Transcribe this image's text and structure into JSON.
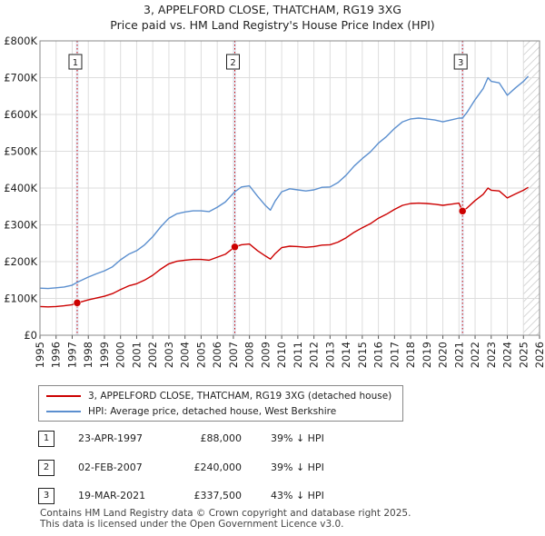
{
  "title_line1": "3, APPELFORD CLOSE, THATCHAM, RG19 3XG",
  "title_line2": "Price paid vs. HM Land Registry's House Price Index (HPI)",
  "chart_data": {
    "type": "line",
    "x_range": [
      1995,
      2026
    ],
    "ylim": [
      0,
      800000
    ],
    "y_ticks": [
      0,
      100000,
      200000,
      300000,
      400000,
      500000,
      600000,
      700000,
      800000
    ],
    "y_tick_labels": [
      "£0",
      "£100K",
      "£200K",
      "£300K",
      "£400K",
      "£500K",
      "£600K",
      "£700K",
      "£800K"
    ],
    "x_tick_labels": [
      "1995",
      "1996",
      "1997",
      "1998",
      "1999",
      "2000",
      "2001",
      "2002",
      "2003",
      "2004",
      "2005",
      "2006",
      "2007",
      "2008",
      "2009",
      "2010",
      "2011",
      "2012",
      "2013",
      "2014",
      "2015",
      "2016",
      "2017",
      "2018",
      "2019",
      "2020",
      "2021",
      "2022",
      "2023",
      "2024",
      "2025",
      "2026"
    ],
    "grid": true,
    "forecast_start": 2025.0,
    "series": [
      {
        "name": "HPI: Average price, detached house, West Berkshire",
        "color": "#5b8fcf",
        "points": [
          [
            1995.0,
            128000
          ],
          [
            1995.5,
            127000
          ],
          [
            1996.0,
            129000
          ],
          [
            1996.5,
            131000
          ],
          [
            1997.0,
            136000
          ],
          [
            1997.31,
            144000
          ],
          [
            1997.5,
            148000
          ],
          [
            1998.0,
            158000
          ],
          [
            1998.5,
            167000
          ],
          [
            1999.0,
            175000
          ],
          [
            1999.5,
            186000
          ],
          [
            2000.0,
            205000
          ],
          [
            2000.5,
            220000
          ],
          [
            2001.0,
            230000
          ],
          [
            2001.5,
            246000
          ],
          [
            2002.0,
            268000
          ],
          [
            2002.5,
            295000
          ],
          [
            2003.0,
            318000
          ],
          [
            2003.5,
            330000
          ],
          [
            2004.0,
            335000
          ],
          [
            2004.5,
            338000
          ],
          [
            2005.0,
            338000
          ],
          [
            2005.5,
            336000
          ],
          [
            2006.0,
            348000
          ],
          [
            2006.5,
            362000
          ],
          [
            2007.09,
            390000
          ],
          [
            2007.5,
            403000
          ],
          [
            2008.0,
            406000
          ],
          [
            2008.5,
            378000
          ],
          [
            2009.0,
            352000
          ],
          [
            2009.3,
            340000
          ],
          [
            2009.6,
            365000
          ],
          [
            2010.0,
            390000
          ],
          [
            2010.5,
            398000
          ],
          [
            2011.0,
            395000
          ],
          [
            2011.5,
            392000
          ],
          [
            2012.0,
            395000
          ],
          [
            2012.5,
            402000
          ],
          [
            2013.0,
            403000
          ],
          [
            2013.5,
            415000
          ],
          [
            2014.0,
            435000
          ],
          [
            2014.5,
            460000
          ],
          [
            2015.0,
            480000
          ],
          [
            2015.5,
            498000
          ],
          [
            2016.0,
            522000
          ],
          [
            2016.5,
            540000
          ],
          [
            2017.0,
            562000
          ],
          [
            2017.5,
            580000
          ],
          [
            2018.0,
            588000
          ],
          [
            2018.5,
            590000
          ],
          [
            2019.0,
            588000
          ],
          [
            2019.5,
            585000
          ],
          [
            2020.0,
            580000
          ],
          [
            2020.5,
            585000
          ],
          [
            2021.0,
            590000
          ],
          [
            2021.22,
            590000
          ],
          [
            2021.5,
            606000
          ],
          [
            2022.0,
            640000
          ],
          [
            2022.5,
            670000
          ],
          [
            2022.8,
            700000
          ],
          [
            2023.0,
            690000
          ],
          [
            2023.5,
            686000
          ],
          [
            2024.0,
            652000
          ],
          [
            2024.5,
            672000
          ],
          [
            2025.0,
            690000
          ],
          [
            2025.3,
            704000
          ]
        ]
      },
      {
        "name": "3, APPELFORD CLOSE, THATCHAM, RG19 3XG (detached house)",
        "color": "#cc0000",
        "points": [
          [
            1995.0,
            78000
          ],
          [
            1995.5,
            77000
          ],
          [
            1996.0,
            78000
          ],
          [
            1996.5,
            80000
          ],
          [
            1997.0,
            83000
          ],
          [
            1997.31,
            88000
          ],
          [
            1997.5,
            90000
          ],
          [
            1998.0,
            96000
          ],
          [
            1998.5,
            101000
          ],
          [
            1999.0,
            106000
          ],
          [
            1999.5,
            113000
          ],
          [
            2000.0,
            124000
          ],
          [
            2000.5,
            134000
          ],
          [
            2001.0,
            140000
          ],
          [
            2001.5,
            150000
          ],
          [
            2002.0,
            163000
          ],
          [
            2002.5,
            180000
          ],
          [
            2003.0,
            194000
          ],
          [
            2003.5,
            201000
          ],
          [
            2004.0,
            204000
          ],
          [
            2004.5,
            206000
          ],
          [
            2005.0,
            206000
          ],
          [
            2005.5,
            204000
          ],
          [
            2006.0,
            212000
          ],
          [
            2006.5,
            220000
          ],
          [
            2007.09,
            240000
          ],
          [
            2007.5,
            246000
          ],
          [
            2008.0,
            248000
          ],
          [
            2008.5,
            230000
          ],
          [
            2009.0,
            215000
          ],
          [
            2009.3,
            207000
          ],
          [
            2009.6,
            222000
          ],
          [
            2010.0,
            238000
          ],
          [
            2010.5,
            242000
          ],
          [
            2011.0,
            241000
          ],
          [
            2011.5,
            239000
          ],
          [
            2012.0,
            241000
          ],
          [
            2012.5,
            245000
          ],
          [
            2013.0,
            246000
          ],
          [
            2013.5,
            253000
          ],
          [
            2014.0,
            265000
          ],
          [
            2014.5,
            280000
          ],
          [
            2015.0,
            292000
          ],
          [
            2015.5,
            303000
          ],
          [
            2016.0,
            318000
          ],
          [
            2016.5,
            329000
          ],
          [
            2017.0,
            342000
          ],
          [
            2017.5,
            353000
          ],
          [
            2018.0,
            358000
          ],
          [
            2018.5,
            359000
          ],
          [
            2019.0,
            358000
          ],
          [
            2019.5,
            356000
          ],
          [
            2020.0,
            353000
          ],
          [
            2020.5,
            356000
          ],
          [
            2021.0,
            359000
          ],
          [
            2021.22,
            337500
          ],
          [
            2021.5,
            346000
          ],
          [
            2022.0,
            366000
          ],
          [
            2022.5,
            383000
          ],
          [
            2022.8,
            400000
          ],
          [
            2023.0,
            394000
          ],
          [
            2023.5,
            392000
          ],
          [
            2024.0,
            373000
          ],
          [
            2024.5,
            384000
          ],
          [
            2025.0,
            394000
          ],
          [
            2025.3,
            402000
          ]
        ]
      }
    ],
    "sales": [
      {
        "label": "1",
        "x": 1997.31,
        "price": 88000
      },
      {
        "label": "2",
        "x": 2007.09,
        "price": 240000
      },
      {
        "label": "3",
        "x": 2021.22,
        "price": 337500
      }
    ]
  },
  "legend": {
    "property_label": "3, APPELFORD CLOSE, THATCHAM, RG19 3XG (detached house)",
    "hpi_label": "HPI: Average price, detached house, West Berkshire",
    "property_color": "#cc0000",
    "hpi_color": "#5b8fcf"
  },
  "sales_table": [
    {
      "num": "1",
      "date": "23-APR-1997",
      "price": "£88,000",
      "hpi": "39% ↓ HPI"
    },
    {
      "num": "2",
      "date": "02-FEB-2007",
      "price": "£240,000",
      "hpi": "39% ↓ HPI"
    },
    {
      "num": "3",
      "date": "19-MAR-2021",
      "price": "£337,500",
      "hpi": "43% ↓ HPI"
    }
  ],
  "footer_line1": "Contains HM Land Registry data © Crown copyright and database right 2025.",
  "footer_line2": "This data is licensed under the Open Government Licence v3.0."
}
